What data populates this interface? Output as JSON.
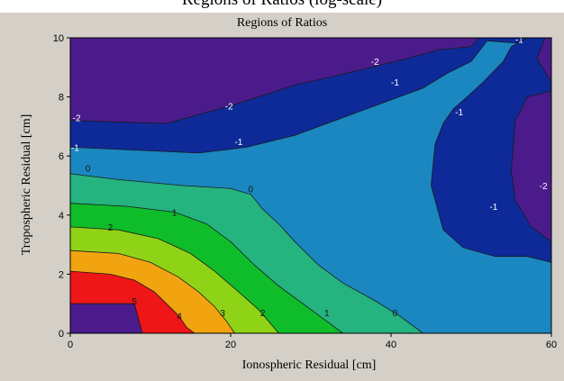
{
  "caption": "Regions of Ratios (log-scale)",
  "chart_data": {
    "type": "contour",
    "title": "Regions of Ratios",
    "xlabel": "Ionospheric Residual [cm]",
    "ylabel": "Tropospheric Residual [cm]",
    "xlim": [
      0,
      60
    ],
    "ylim": [
      0,
      10
    ],
    "x_ticks": [
      0,
      20,
      40,
      60
    ],
    "y_ticks": [
      0,
      2,
      4,
      6,
      8,
      10
    ],
    "legend": "none",
    "grid": false,
    "colors": {
      "level_neg2": "#4b1b8c",
      "level_neg1": "#0e2a98",
      "level_0": "#1b87c0",
      "level_1": "#25b380",
      "level_2": "#0fbd2b",
      "level_3": "#8fd316",
      "level_4": "#f1a410",
      "level_5": "#ee1616",
      "level_6": "#4b1b8c"
    },
    "regions": [
      {
        "level": "-2",
        "points": [
          [
            0,
            10
          ],
          [
            60,
            10
          ],
          [
            60,
            0
          ],
          [
            0,
            0
          ]
        ]
      },
      {
        "level": "-1",
        "points": [
          [
            0,
            7.2
          ],
          [
            12,
            7.1
          ],
          [
            20,
            7.7
          ],
          [
            28,
            8.4
          ],
          [
            36,
            8.9
          ],
          [
            42,
            9.3
          ],
          [
            46,
            9.6
          ],
          [
            50,
            9.7
          ],
          [
            51,
            10
          ],
          [
            60,
            10
          ],
          [
            60,
            0
          ],
          [
            0,
            0
          ]
        ]
      },
      {
        "level": "0",
        "points": [
          [
            0,
            6.3
          ],
          [
            8,
            6.2
          ],
          [
            16,
            6.1
          ],
          [
            22,
            6.3
          ],
          [
            28,
            6.7
          ],
          [
            34,
            7.3
          ],
          [
            40,
            7.9
          ],
          [
            44,
            8.3
          ],
          [
            47,
            8.8
          ],
          [
            50,
            9.2
          ],
          [
            52,
            9.9
          ],
          [
            57,
            9.8
          ],
          [
            60,
            10
          ],
          [
            60,
            0
          ],
          [
            0,
            0
          ]
        ]
      },
      {
        "level": "-1",
        "points": [
          [
            45.5,
            6.4
          ],
          [
            46.5,
            7.1
          ],
          [
            47.8,
            7.6
          ],
          [
            49.5,
            8.0
          ],
          [
            51.5,
            8.5
          ],
          [
            54,
            9.2
          ],
          [
            55,
            9.7
          ],
          [
            57,
            10
          ],
          [
            60,
            10
          ],
          [
            60,
            2.4
          ],
          [
            57,
            2.6
          ],
          [
            53,
            2.6
          ],
          [
            49,
            2.9
          ],
          [
            46.5,
            3.5
          ],
          [
            45,
            5.0
          ]
        ]
      },
      {
        "level": "-2",
        "points": [
          [
            59.2,
            10
          ],
          [
            60,
            10
          ],
          [
            60,
            8.5
          ],
          [
            58.2,
            9.3
          ]
        ]
      },
      {
        "level": "-2",
        "points": [
          [
            60,
            8.2
          ],
          [
            57,
            8.0
          ],
          [
            55.5,
            7.2
          ],
          [
            55,
            5.5
          ],
          [
            55.5,
            4.5
          ],
          [
            57.5,
            3.6
          ],
          [
            60,
            3.1
          ]
        ]
      },
      {
        "level": "1",
        "points": [
          [
            0,
            5.4
          ],
          [
            6,
            5.2
          ],
          [
            14,
            5.0
          ],
          [
            20,
            4.9
          ],
          [
            22.5,
            4.7
          ],
          [
            24,
            4.2
          ],
          [
            26,
            3.7
          ],
          [
            28,
            3.1
          ],
          [
            31,
            2.3
          ],
          [
            34,
            1.7
          ],
          [
            38,
            1.1
          ],
          [
            41,
            0.6
          ],
          [
            44,
            0
          ],
          [
            0,
            0
          ]
        ]
      },
      {
        "level": "2",
        "points": [
          [
            0,
            4.4
          ],
          [
            7,
            4.3
          ],
          [
            13,
            4.1
          ],
          [
            17,
            3.7
          ],
          [
            20,
            3.1
          ],
          [
            23,
            2.3
          ],
          [
            26,
            1.6
          ],
          [
            29,
            1.0
          ],
          [
            31.5,
            0.5
          ],
          [
            34,
            0
          ],
          [
            0,
            0
          ]
        ]
      },
      {
        "level": "3",
        "points": [
          [
            0,
            3.6
          ],
          [
            6,
            3.5
          ],
          [
            11,
            3.2
          ],
          [
            15,
            2.7
          ],
          [
            18,
            2.1
          ],
          [
            21,
            1.4
          ],
          [
            23.5,
            0.8
          ],
          [
            26,
            0
          ],
          [
            0,
            0
          ]
        ]
      },
      {
        "level": "4",
        "points": [
          [
            0,
            2.8
          ],
          [
            6,
            2.7
          ],
          [
            10,
            2.4
          ],
          [
            13.5,
            1.9
          ],
          [
            16,
            1.4
          ],
          [
            18,
            0.9
          ],
          [
            19.5,
            0.4
          ],
          [
            20.5,
            0
          ],
          [
            0,
            0
          ]
        ]
      },
      {
        "level": "5",
        "points": [
          [
            0,
            2.1
          ],
          [
            5,
            2.0
          ],
          [
            8,
            1.8
          ],
          [
            10.5,
            1.4
          ],
          [
            12,
            1.0
          ],
          [
            13.5,
            0.6
          ],
          [
            14.5,
            0.2
          ],
          [
            15.5,
            0
          ],
          [
            0,
            0
          ]
        ]
      },
      {
        "level": "6",
        "points": [
          [
            0,
            1.0
          ],
          [
            8,
            1.0
          ],
          [
            9,
            0
          ],
          [
            0,
            0
          ]
        ]
      }
    ],
    "contour_labels": [
      {
        "text": "-2",
        "x": 0.8,
        "y": 7.3
      },
      {
        "text": "-2",
        "x": 19.8,
        "y": 7.7
      },
      {
        "text": "-2",
        "x": 38,
        "y": 9.2
      },
      {
        "text": "-1",
        "x": 56,
        "y": 9.95
      },
      {
        "text": "-1",
        "x": 0.6,
        "y": 6.3
      },
      {
        "text": "-1",
        "x": 21,
        "y": 6.5
      },
      {
        "text": "-1",
        "x": 40.5,
        "y": 8.5
      },
      {
        "text": "-1",
        "x": 48.5,
        "y": 7.5
      },
      {
        "text": "-1",
        "x": 52.8,
        "y": 4.3
      },
      {
        "text": "-2",
        "x": 59,
        "y": 5.0
      },
      {
        "text": "0",
        "x": 2.2,
        "y": 5.6
      },
      {
        "text": "0",
        "x": 22.5,
        "y": 4.9
      },
      {
        "text": "0",
        "x": 40.5,
        "y": 0.7
      },
      {
        "text": "1",
        "x": 13,
        "y": 4.1
      },
      {
        "text": "1",
        "x": 32,
        "y": 0.7
      },
      {
        "text": "2",
        "x": 5,
        "y": 3.6
      },
      {
        "text": "2",
        "x": 24,
        "y": 0.7
      },
      {
        "text": "3",
        "x": 19,
        "y": 0.7
      },
      {
        "text": "4",
        "x": 13.6,
        "y": 0.6
      },
      {
        "text": "5",
        "x": 8,
        "y": 1.1
      }
    ]
  }
}
